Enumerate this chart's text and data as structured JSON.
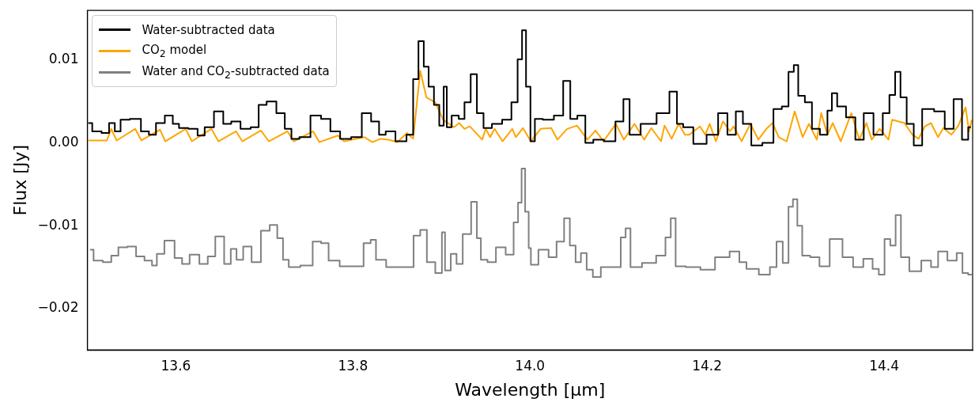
{
  "chart_data": {
    "type": "step",
    "xlabel": "Wavelength [μm]",
    "ylabel": "Flux [Jy]",
    "xlim": [
      13.5,
      14.5
    ],
    "ylim": [
      -0.025,
      0.016
    ],
    "xticks": [
      13.6,
      13.8,
      {
        "value": 14,
        "label": "14.0"
      },
      14.2,
      14.4
    ],
    "yticks": [
      {
        "value": -0.02,
        "label": "−0.02"
      },
      {
        "value": -0.01,
        "label": "−0.01"
      },
      {
        "value": 0,
        "label": "0.00"
      },
      {
        "value": 0.01,
        "label": "0.01"
      }
    ],
    "legend": "top left",
    "series": [
      {
        "name": "Water-subtracted data",
        "type": "step",
        "color": "#000000",
        "x": [
          13.501,
          13.51,
          13.522,
          13.527,
          13.535,
          13.54,
          13.556,
          13.565,
          13.574,
          13.581,
          13.594,
          13.599,
          13.608,
          13.62,
          13.629,
          13.636,
          13.65,
          13.657,
          13.668,
          13.678,
          13.691,
          13.696,
          13.709,
          13.718,
          13.728,
          13.733,
          13.746,
          13.758,
          13.77,
          13.779,
          13.792,
          13.804,
          13.816,
          13.825,
          13.834,
          13.84,
          13.856,
          13.865,
          13.871,
          13.877,
          13.883,
          13.888,
          13.895,
          13.9,
          13.905,
          13.907,
          13.916,
          13.923,
          13.929,
          13.937,
          13.943,
          13.952,
          13.962,
          13.975,
          13.983,
          13.989,
          13.993,
          13.998,
          14.003,
          14.008,
          14.021,
          14.033,
          14.042,
          14.049,
          14.058,
          14.067,
          14.076,
          14.091,
          14.102,
          14.109,
          14.116,
          14.134,
          14.152,
          14.163,
          14.169,
          14.177,
          14.192,
          14.207,
          14.218,
          14.228,
          14.237,
          14.244,
          14.256,
          14.269,
          14.281,
          14.288,
          14.296,
          14.3,
          14.306,
          14.315,
          14.322,
          14.333,
          14.339,
          14.343,
          14.351,
          14.363,
          14.372,
          14.382,
          14.394,
          14.403,
          14.409,
          14.416,
          14.421,
          14.43,
          14.437,
          14.449,
          14.464,
          14.473,
          14.484,
          14.492,
          14.498
        ],
        "values": [
          0.0024,
          0.0014,
          0.0012,
          0.0024,
          0.0014,
          0.0028,
          0.0029,
          0.0014,
          0.001,
          0.0024,
          0.0033,
          0.0023,
          0.0018,
          0.0017,
          0.0009,
          0.0019,
          0.0038,
          0.0023,
          0.0026,
          0.0017,
          0.0019,
          0.0046,
          0.005,
          0.0036,
          0.0017,
          0.0005,
          0.0007,
          0.0033,
          0.0029,
          0.0014,
          0.0005,
          0.0007,
          0.0036,
          0.0026,
          0.001,
          0.0014,
          0.0002,
          0.001,
          0.0077,
          0.0123,
          0.0092,
          0.0068,
          0.0046,
          0.0021,
          0.0068,
          0.0019,
          0.0033,
          0.0029,
          0.0049,
          0.0083,
          0.0036,
          0.0018,
          0.0023,
          0.0028,
          0.0049,
          0.0101,
          0.0136,
          0.0068,
          0.0002,
          0.0029,
          0.0028,
          0.0033,
          0.0075,
          0.0029,
          0.0033,
          0.0,
          0.0004,
          0.0002,
          0.0026,
          0.0053,
          0.001,
          0.0023,
          0.0036,
          0.0062,
          0.0023,
          0.0019,
          -0.0001,
          0.001,
          0.0036,
          0.001,
          0.0038,
          0.0023,
          -0.0003,
          0.0,
          0.0041,
          0.0044,
          0.0086,
          0.0094,
          0.0057,
          0.0049,
          0.0017,
          0.001,
          0.0039,
          0.006,
          0.0044,
          0.0031,
          0.0004,
          0.0036,
          0.001,
          0.0036,
          0.0058,
          0.0086,
          0.0055,
          0.0023,
          -0.0003,
          0.0041,
          0.0038,
          0.0017,
          0.0053,
          0.0004,
          0.0019
        ]
      },
      {
        "name": "CO$_{2}$ model",
        "type": "line",
        "color": "#ffa500",
        "x": [
          13.501,
          13.522,
          13.527,
          13.533,
          13.554,
          13.561,
          13.582,
          13.588,
          13.611,
          13.618,
          13.64,
          13.648,
          13.668,
          13.675,
          13.696,
          13.705,
          13.726,
          13.733,
          13.755,
          13.762,
          13.783,
          13.79,
          13.813,
          13.822,
          13.831,
          13.84,
          13.85,
          13.861,
          13.868,
          13.876,
          13.883,
          13.893,
          13.902,
          13.914,
          13.92,
          13.926,
          13.932,
          13.946,
          13.95,
          13.955,
          13.96,
          13.969,
          13.98,
          13.984,
          13.992,
          14.001,
          14.012,
          14.024,
          14.031,
          14.042,
          14.053,
          14.065,
          14.074,
          14.083,
          14.097,
          14.106,
          14.118,
          14.129,
          14.137,
          14.148,
          14.152,
          14.16,
          14.168,
          14.175,
          14.18,
          14.192,
          14.198,
          14.203,
          14.21,
          14.218,
          14.226,
          14.23,
          14.239,
          14.249,
          14.258,
          14.267,
          14.274,
          14.281,
          14.29,
          14.299,
          14.308,
          14.315,
          14.324,
          14.329,
          14.336,
          14.342,
          14.351,
          14.363,
          14.372,
          14.38,
          14.386,
          14.395,
          14.405,
          14.409,
          14.423,
          14.432,
          14.439,
          14.446,
          14.453,
          14.461,
          14.467,
          14.476,
          14.484,
          14.492,
          14.496,
          14.499
        ],
        "values": [
          0.0003,
          0.0003,
          0.0017,
          0.0003,
          0.0017,
          0.0003,
          0.0016,
          0.0002,
          0.0017,
          0.0002,
          0.0017,
          0.0002,
          0.0014,
          0.0002,
          0.0015,
          0.0002,
          0.0014,
          0.0002,
          0.0014,
          0.0001,
          0.0009,
          0.0002,
          0.0007,
          0.0001,
          0.0005,
          0.0004,
          0.0001,
          0.0012,
          0.0005,
          0.0087,
          0.0055,
          0.0049,
          0.0028,
          0.0019,
          0.0024,
          0.0017,
          0.002,
          0.0004,
          0.0017,
          0.0007,
          0.0017,
          0.0002,
          0.0017,
          0.0007,
          0.0018,
          0.0002,
          0.0017,
          0.0018,
          0.0004,
          0.0017,
          0.0021,
          0.0004,
          0.0015,
          0.0002,
          0.0023,
          0.0004,
          0.0023,
          0.0004,
          0.0018,
          0.0002,
          0.0021,
          0.0005,
          0.0023,
          0.001,
          0.001,
          0.002,
          0.001,
          0.0023,
          0.0002,
          0.0026,
          0.0014,
          0.002,
          0.0002,
          0.0023,
          0.0004,
          0.0017,
          0.0024,
          0.0007,
          0.0002,
          0.0038,
          0.0007,
          0.0023,
          0.0004,
          0.0036,
          0.001,
          0.0024,
          0.0002,
          0.0036,
          0.0004,
          0.0024,
          0.0004,
          0.0017,
          0.0004,
          0.0028,
          0.0024,
          0.001,
          0.0005,
          0.002,
          0.0024,
          0.0007,
          0.0018,
          0.001,
          0.0021,
          0.0043,
          0.0014,
          0.0028
        ]
      },
      {
        "name": "Water and CO$_{2}$-subtracted data",
        "type": "step",
        "color": "#808080",
        "x": [
          13.503,
          13.511,
          13.524,
          13.53,
          13.54,
          13.55,
          13.56,
          13.569,
          13.577,
          13.58,
          13.594,
          13.603,
          13.611,
          13.62,
          13.633,
          13.639,
          13.65,
          13.659,
          13.665,
          13.672,
          13.68,
          13.691,
          13.701,
          13.711,
          13.718,
          13.724,
          13.731,
          13.75,
          13.759,
          13.769,
          13.776,
          13.794,
          13.807,
          13.817,
          13.823,
          13.829,
          13.846,
          13.865,
          13.872,
          13.88,
          13.887,
          13.899,
          13.902,
          13.906,
          13.915,
          13.919,
          13.929,
          13.938,
          13.942,
          13.947,
          13.957,
          13.966,
          13.979,
          13.984,
          13.989,
          13.992,
          13.997,
          14.0,
          14.002,
          14.017,
          14.025,
          14.035,
          14.042,
          14.048,
          14.055,
          14.06,
          14.068,
          14.074,
          14.086,
          14.099,
          14.106,
          14.11,
          14.117,
          14.136,
          14.149,
          14.157,
          14.161,
          14.168,
          14.184,
          14.201,
          14.217,
          14.234,
          14.239,
          14.25,
          14.267,
          14.275,
          14.282,
          14.289,
          14.295,
          14.299,
          14.305,
          14.31,
          14.323,
          14.331,
          14.346,
          14.36,
          14.37,
          14.383,
          14.391,
          14.397,
          14.404,
          14.41,
          14.416,
          14.422,
          14.435,
          14.449,
          14.457,
          14.465,
          14.478,
          14.486,
          14.491,
          14.499
        ],
        "values": [
          -0.0129,
          -0.0142,
          -0.0144,
          -0.0136,
          -0.0126,
          -0.0125,
          -0.0137,
          -0.0142,
          -0.0148,
          -0.0134,
          -0.0118,
          -0.0139,
          -0.0146,
          -0.0135,
          -0.0146,
          -0.0137,
          -0.0113,
          -0.0146,
          -0.0128,
          -0.0141,
          -0.0125,
          -0.0144,
          -0.0106,
          -0.0099,
          -0.0115,
          -0.0141,
          -0.015,
          -0.0148,
          -0.0119,
          -0.0121,
          -0.0142,
          -0.0149,
          -0.0149,
          -0.0121,
          -0.0117,
          -0.0141,
          -0.015,
          -0.015,
          -0.0112,
          -0.0105,
          -0.0144,
          -0.0157,
          -0.0108,
          -0.0154,
          -0.0134,
          -0.0146,
          -0.011,
          -0.0071,
          -0.0115,
          -0.0141,
          -0.0144,
          -0.0126,
          -0.0135,
          -0.0096,
          -0.0072,
          -0.0031,
          -0.0083,
          -0.0127,
          -0.0147,
          -0.0129,
          -0.0138,
          -0.0119,
          -0.0091,
          -0.0124,
          -0.0144,
          -0.0133,
          -0.0153,
          -0.0162,
          -0.015,
          -0.015,
          -0.0114,
          -0.0103,
          -0.015,
          -0.0145,
          -0.0136,
          -0.0114,
          -0.0091,
          -0.0149,
          -0.015,
          -0.0153,
          -0.0138,
          -0.0131,
          -0.0144,
          -0.0152,
          -0.0159,
          -0.015,
          -0.0119,
          -0.0145,
          -0.0077,
          -0.0068,
          -0.01,
          -0.0136,
          -0.0138,
          -0.0149,
          -0.0116,
          -0.0138,
          -0.015,
          -0.014,
          -0.0152,
          -0.0159,
          -0.0116,
          -0.0124,
          -0.0087,
          -0.0138,
          -0.0155,
          -0.0142,
          -0.015,
          -0.0131,
          -0.0142,
          -0.0133,
          -0.0157,
          -0.0159
        ]
      }
    ]
  }
}
